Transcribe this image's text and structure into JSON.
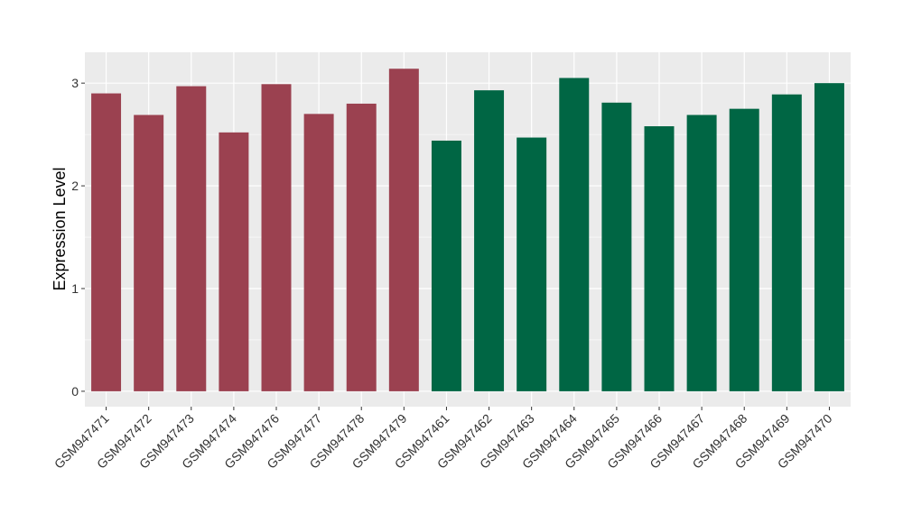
{
  "chart_data": {
    "type": "bar",
    "xlabel": "",
    "ylabel": "Expression Level",
    "ylim": [
      -0.15,
      3.3
    ],
    "yticks": [
      0,
      1,
      2,
      3
    ],
    "grid": true,
    "legend": "none",
    "colors": {
      "group_a": "#9b4150",
      "group_b": "#006644",
      "panel": "#ebebeb",
      "grid": "#ffffff"
    },
    "categories": [
      "GSM947471",
      "GSM947472",
      "GSM947473",
      "GSM947474",
      "GSM947476",
      "GSM947477",
      "GSM947478",
      "GSM947479",
      "GSM947461",
      "GSM947462",
      "GSM947463",
      "GSM947464",
      "GSM947465",
      "GSM947466",
      "GSM947467",
      "GSM947468",
      "GSM947469",
      "GSM947470"
    ],
    "values": [
      2.9,
      2.69,
      2.97,
      2.52,
      2.99,
      2.7,
      2.8,
      3.14,
      2.44,
      2.93,
      2.47,
      3.05,
      2.81,
      2.58,
      2.69,
      2.75,
      2.89,
      3.0
    ],
    "groups": [
      "a",
      "a",
      "a",
      "a",
      "a",
      "a",
      "a",
      "a",
      "b",
      "b",
      "b",
      "b",
      "b",
      "b",
      "b",
      "b",
      "b",
      "b"
    ]
  }
}
